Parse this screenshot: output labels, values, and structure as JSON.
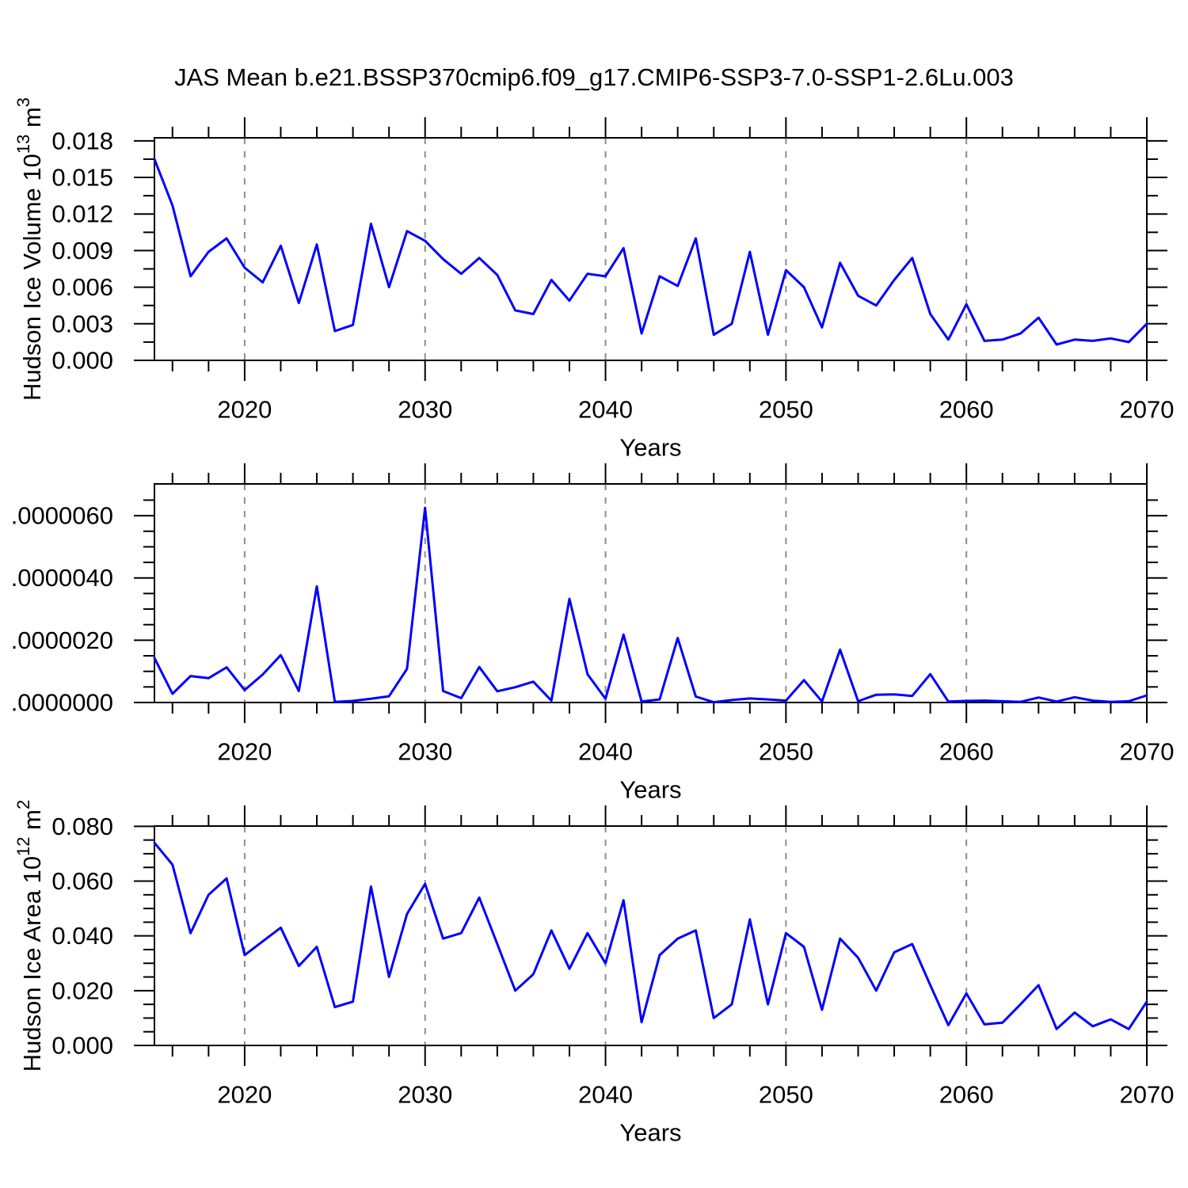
{
  "figure": {
    "title": "JAS Mean b.e21.BSSP370cmip6.f09_g17.CMIP6-SSP3-7.0-SSP1-2.6Lu.003",
    "background": "#ffffff",
    "line_color": "#0000ff",
    "axis_color": "#000000",
    "grid_color": "#8e8e8e"
  },
  "years": [
    2015,
    2016,
    2017,
    2018,
    2019,
    2020,
    2021,
    2022,
    2023,
    2024,
    2025,
    2026,
    2027,
    2028,
    2029,
    2030,
    2031,
    2032,
    2033,
    2034,
    2035,
    2036,
    2037,
    2038,
    2039,
    2040,
    2041,
    2042,
    2043,
    2044,
    2045,
    2046,
    2047,
    2048,
    2049,
    2050,
    2051,
    2052,
    2053,
    2054,
    2055,
    2056,
    2057,
    2058,
    2059,
    2060,
    2061,
    2062,
    2063,
    2064,
    2065,
    2066,
    2067,
    2068,
    2069,
    2070
  ],
  "chart_data": [
    {
      "type": "line",
      "name": "hudson-ice-volume",
      "ylabel_parts": [
        {
          "text": "Hudson Ice Volume 10"
        },
        {
          "text": "13",
          "super": true
        },
        {
          "text": " m"
        },
        {
          "text": "3",
          "super": true
        }
      ],
      "xlabel": "Years",
      "xlim": [
        2015,
        2070
      ],
      "ylim": [
        0,
        0.01825
      ],
      "xticks": [
        2020,
        2030,
        2040,
        2050,
        2060,
        2070
      ],
      "xtick_labels": [
        "2020",
        "2030",
        "2040",
        "2050",
        "2060",
        "2070"
      ],
      "xtick_minor_step": 2,
      "grid_x": [
        2020,
        2030,
        2040,
        2050,
        2060
      ],
      "ytick_values": [
        0.0,
        0.003,
        0.006,
        0.009,
        0.012,
        0.015,
        0.018
      ],
      "ytick_labels": [
        "0.000",
        "0.003",
        "0.006",
        "0.009",
        "0.012",
        "0.015",
        "0.018"
      ],
      "ytick_minor_step": 0.0015,
      "values": [
        0.0165,
        0.0127,
        0.0069,
        0.0089,
        0.01,
        0.0076,
        0.0064,
        0.0094,
        0.0047,
        0.0095,
        0.0024,
        0.0029,
        0.0112,
        0.006,
        0.0106,
        0.0098,
        0.0083,
        0.0071,
        0.0084,
        0.007,
        0.0041,
        0.0038,
        0.0066,
        0.0049,
        0.0071,
        0.0069,
        0.0092,
        0.0022,
        0.0069,
        0.0061,
        0.01,
        0.0021,
        0.003,
        0.0089,
        0.0021,
        0.0074,
        0.006,
        0.0027,
        0.008,
        0.0053,
        0.0045,
        0.0066,
        0.0084,
        0.0038,
        0.0017,
        0.0046,
        0.0016,
        0.0017,
        0.0022,
        0.0035,
        0.0013,
        0.0017,
        0.0016,
        0.0018,
        0.0015,
        0.003
      ]
    },
    {
      "type": "line",
      "name": "hudson-ice-middle",
      "ylabel_parts": [],
      "xlabel": "Years",
      "xlim": [
        2015,
        2070
      ],
      "ylim": [
        0,
        7.02e-06
      ],
      "xticks": [
        2020,
        2030,
        2040,
        2050,
        2060,
        2070
      ],
      "xtick_labels": [
        "2020",
        "2030",
        "2040",
        "2050",
        "2060",
        "2070"
      ],
      "xtick_minor_step": 2,
      "grid_x": [
        2020,
        2030,
        2040,
        2050,
        2060
      ],
      "ytick_values": [
        0.0,
        2e-06,
        4e-06,
        6e-06
      ],
      "ytick_labels": [
        ".0000000",
        ".0000020",
        ".0000040",
        ".0000060"
      ],
      "ytick_minor_step": 5e-07,
      "values": [
        1.43e-06,
        2.8e-07,
        8.5e-07,
        7.8e-07,
        1.13e-06,
        4e-07,
        9e-07,
        1.52e-06,
        3.7e-07,
        3.73e-06,
        2e-08,
        5e-08,
        1.2e-07,
        2e-07,
        1.08e-06,
        6.25e-06,
        3.7e-07,
        1.4e-07,
        1.14e-06,
        3.6e-07,
        4.9e-07,
        6.7e-07,
        6e-08,
        3.33e-06,
        9.1e-07,
        1.2e-07,
        2.18e-06,
        3e-08,
        1e-07,
        2.07e-06,
        1.9e-07,
        1e-08,
        8e-08,
        1.3e-07,
        1e-07,
        6e-08,
        7.2e-07,
        3e-08,
        1.7e-06,
        4e-08,
        2.5e-07,
        2.6e-07,
        2.1e-07,
        9.1e-07,
        3e-08,
        5e-08,
        6e-08,
        4e-08,
        2e-08,
        1.6e-07,
        3e-08,
        1.7e-07,
        6e-08,
        2e-08,
        4e-08,
        2.3e-07
      ]
    },
    {
      "type": "line",
      "name": "hudson-ice-area",
      "ylabel_parts": [
        {
          "text": "Hudson Ice Area 10"
        },
        {
          "text": "12",
          "super": true
        },
        {
          "text": " m"
        },
        {
          "text": "2",
          "super": true
        }
      ],
      "xlabel": "Years",
      "xlim": [
        2015,
        2070
      ],
      "ylim": [
        0,
        0.0801
      ],
      "xticks": [
        2020,
        2030,
        2040,
        2050,
        2060,
        2070
      ],
      "xtick_labels": [
        "2020",
        "2030",
        "2040",
        "2050",
        "2060",
        "2070"
      ],
      "xtick_minor_step": 2,
      "grid_x": [
        2020,
        2030,
        2040,
        2050,
        2060
      ],
      "ytick_values": [
        0.0,
        0.02,
        0.04,
        0.06,
        0.08
      ],
      "ytick_labels": [
        "0.000",
        "0.020",
        "0.040",
        "0.060",
        "0.080"
      ],
      "ytick_minor_step": 0.005,
      "values": [
        0.074,
        0.066,
        0.041,
        0.055,
        0.061,
        0.033,
        0.038,
        0.043,
        0.029,
        0.036,
        0.014,
        0.016,
        0.058,
        0.025,
        0.048,
        0.059,
        0.039,
        0.041,
        0.054,
        0.037,
        0.02,
        0.026,
        0.042,
        0.028,
        0.041,
        0.03,
        0.053,
        0.0085,
        0.033,
        0.039,
        0.042,
        0.01,
        0.015,
        0.046,
        0.015,
        0.041,
        0.036,
        0.013,
        0.039,
        0.032,
        0.02,
        0.034,
        0.037,
        0.022,
        0.0074,
        0.019,
        0.0077,
        0.0083,
        0.015,
        0.022,
        0.006,
        0.012,
        0.007,
        0.0095,
        0.006,
        0.016
      ]
    }
  ]
}
